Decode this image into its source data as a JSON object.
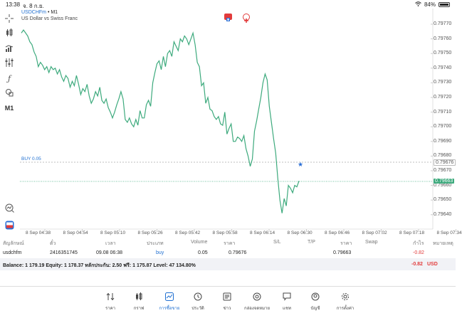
{
  "status_bar": {
    "time": "13:38",
    "date": "จ. 8 ก.ย.",
    "battery": "84%",
    "battery_level": 0.84
  },
  "chart": {
    "symbol": "USDCHFm",
    "timeframe_suffix": " • M1",
    "description": "US Dollar vs Swiss Franc",
    "buy_label": "BUY 0.05",
    "timeframe_button": "M1",
    "price_labels": [
      "0.79770",
      "0.79760",
      "0.79750",
      "0.79740",
      "0.79730",
      "0.79720",
      "0.79710",
      "0.79700",
      "0.79690",
      "0.79680",
      "0.79670",
      "0.79660",
      "0.79650",
      "0.79640"
    ],
    "current_price": "0.79663",
    "open_price": "0.79676",
    "time_labels": [
      "8 Sep 04:38",
      "8 Sep 04:54",
      "8 Sep 05:10",
      "8 Sep 05:26",
      "8 Sep 05:42",
      "8 Sep 05:58",
      "8 Sep 06:14",
      "8 Sep 06:30",
      "8 Sep 06:46",
      "8 Sep 07:02",
      "8 Sep 07:18",
      "8 Sep 07:34"
    ],
    "colors": {
      "line": "#3daa7d",
      "buy_line": "#aaaaaa",
      "current_line": "#3daa7d"
    }
  },
  "chart_data": {
    "type": "line",
    "ylim": [
      0.79635,
      0.79775
    ],
    "series": [
      {
        "values": [
          0.79764,
          0.79766,
          0.79764,
          0.79762,
          0.79758,
          0.79756,
          0.79751,
          0.79748,
          0.79741,
          0.79744,
          0.79742,
          0.79739,
          0.79741,
          0.79737,
          0.79741,
          0.79739,
          0.7974,
          0.79736,
          0.79739,
          0.79734,
          0.79731,
          0.79735,
          0.79733,
          0.79727,
          0.79731,
          0.79728,
          0.79735,
          0.79729,
          0.79722,
          0.79726,
          0.79724,
          0.79729,
          0.79721,
          0.79716,
          0.79719,
          0.79724,
          0.79721,
          0.79727,
          0.79718,
          0.79716,
          0.79719,
          0.79713,
          0.7971,
          0.79706,
          0.7971,
          0.79715,
          0.79719,
          0.79724,
          0.79719,
          0.79705,
          0.79703,
          0.79706,
          0.79702,
          0.797,
          0.79705,
          0.79701,
          0.79711,
          0.79706,
          0.79706,
          0.79715,
          0.79718,
          0.79714,
          0.7973,
          0.79737,
          0.79743,
          0.79745,
          0.79739,
          0.79748,
          0.79741,
          0.7975,
          0.79752,
          0.79748,
          0.79758,
          0.79755,
          0.79752,
          0.7976,
          0.79758,
          0.79762,
          0.7976,
          0.79756,
          0.7976,
          0.79764,
          0.79756,
          0.79744,
          0.79741,
          0.79728,
          0.7973,
          0.79716,
          0.7972,
          0.79712,
          0.79711,
          0.79707,
          0.79705,
          0.79707,
          0.79702,
          0.79701,
          0.7971,
          0.79695,
          0.79699,
          0.79702,
          0.7969,
          0.7969,
          0.79693,
          0.79692,
          0.7969,
          0.79694,
          0.79685,
          0.7968,
          0.79673,
          0.79678,
          0.79697,
          0.79704,
          0.79712,
          0.7972,
          0.7973,
          0.79736,
          0.79732,
          0.79714,
          0.79703,
          0.79692,
          0.79682,
          0.79665,
          0.7965,
          0.79641,
          0.79651,
          0.79646,
          0.7966,
          0.79658,
          0.79655,
          0.7966,
          0.79659,
          0.79663
        ]
      }
    ]
  },
  "table": {
    "headers": [
      "สัญลักษณ์",
      "ตั๋ว",
      "เวลา",
      "ประเภท",
      "Volume",
      "ราคา",
      "S/L",
      "T/P",
      "ราคา",
      "Swap",
      "กำไร",
      "หมายเหตุ"
    ],
    "row": {
      "symbol": "usdchfm",
      "ticket": "2416351745",
      "time": "09.08 06:38",
      "type": "buy",
      "volume": "0.05",
      "open_price": "0.79676",
      "sl": "",
      "tp": "",
      "price": "0.79663",
      "swap": "",
      "profit": "-0.82",
      "comment": ""
    }
  },
  "balance": {
    "text": "Balance: 1 179.19 Equity: 1 178.37 หลักประกัน: 2.50 ฟรี: 1 175.87 Level: 47 134.80%",
    "profit": "-0.82",
    "currency": "USD"
  },
  "nav": [
    {
      "label": "ราคา",
      "icon": "quotes-icon"
    },
    {
      "label": "กราฟ",
      "icon": "chart-icon"
    },
    {
      "label": "การซื้อขาย",
      "icon": "trade-icon"
    },
    {
      "label": "ประวัติ",
      "icon": "history-icon"
    },
    {
      "label": "ข่าว",
      "icon": "news-icon"
    },
    {
      "label": "กล่องจดหมาย",
      "icon": "mailbox-icon"
    },
    {
      "label": "แชท",
      "icon": "chat-icon"
    },
    {
      "label": "บัญชี",
      "icon": "account-icon"
    },
    {
      "label": "การตั้งค่า",
      "icon": "settings-icon"
    }
  ]
}
